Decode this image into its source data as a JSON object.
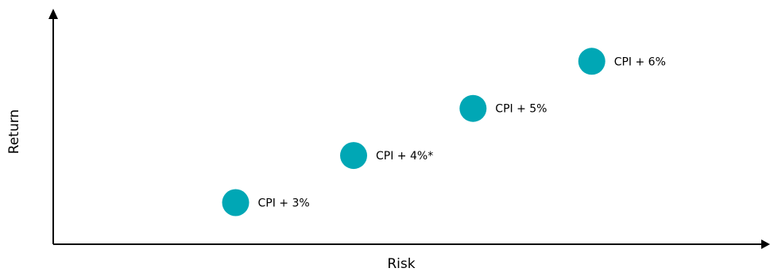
{
  "chart_data": {
    "type": "scatter",
    "title": "",
    "xlabel": "Risk",
    "ylabel": "Return",
    "xlim": [
      0,
      10
    ],
    "ylim": [
      0,
      10
    ],
    "grid": false,
    "legend": "none",
    "point_color": "#00A7B5",
    "points": [
      {
        "label": "CPI + 3%",
        "x": 2.55,
        "y": 1.75
      },
      {
        "label": "CPI + 4%*",
        "x": 4.2,
        "y": 3.73
      },
      {
        "label": "CPI + 5%",
        "x": 5.87,
        "y": 5.71
      },
      {
        "label": "CPI + 6%",
        "x": 7.53,
        "y": 7.69
      }
    ]
  }
}
